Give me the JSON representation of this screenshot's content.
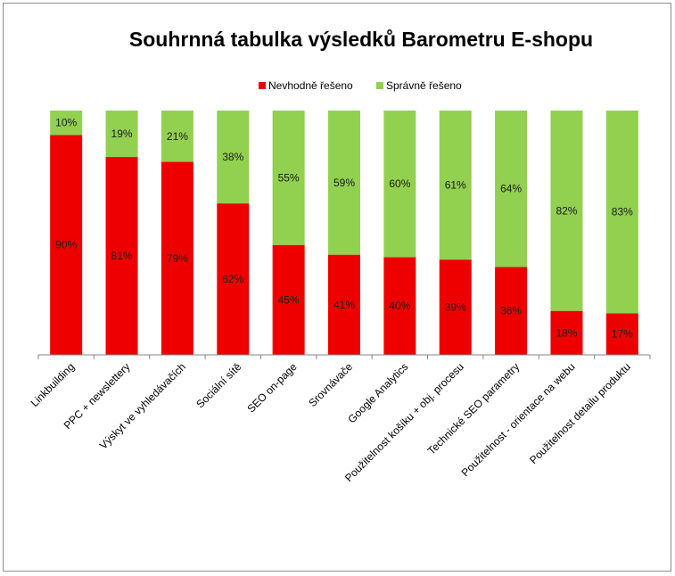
{
  "chart_data": {
    "type": "bar",
    "stacked": true,
    "percent": true,
    "title": "Souhrnná tabulka výsledků Barometru E-shopu",
    "legend_position": "top",
    "categories": [
      "Linkbuilding",
      "PPC + newslettery",
      "Výskyt ve vyhledávačích",
      "Sociální sítě",
      "SEO on-page",
      "Srovnávače",
      "Google Analytics",
      "Použitelnost košíku + obj. procesu",
      "Technické SEO parametry",
      "Použitelnost - orientace na webu",
      "Použitelnost detailu produktu"
    ],
    "series": [
      {
        "name": "Nevhodně řešeno",
        "color": "#ee0000",
        "values": [
          90,
          81,
          79,
          62,
          45,
          41,
          40,
          39,
          36,
          18,
          17
        ]
      },
      {
        "name": "Správně řešeno",
        "color": "#92d050",
        "values": [
          10,
          19,
          21,
          38,
          55,
          59,
          60,
          61,
          64,
          82,
          83
        ]
      }
    ],
    "value_labels": [
      [
        "90%",
        "81%",
        "79%",
        "62%",
        "45%",
        "41%",
        "40%",
        "39%",
        "36%",
        "18%",
        "17%"
      ],
      [
        "10%",
        "19%",
        "21%",
        "38%",
        "55%",
        "59%",
        "60%",
        "61%",
        "64%",
        "82%",
        "83%"
      ]
    ],
    "ylim": [
      0,
      100
    ],
    "grid": false
  }
}
